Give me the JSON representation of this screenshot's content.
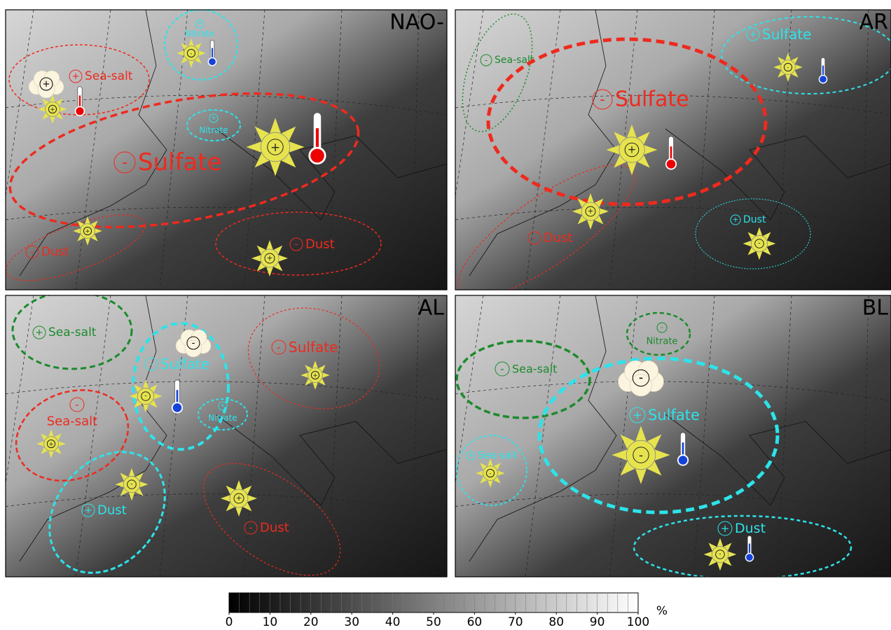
{
  "panels": [
    {
      "label": "NAO-",
      "regions": [
        {
          "name": "Sea-salt",
          "sign": "+"
        },
        {
          "name": "Nitrate",
          "sign": "+"
        },
        {
          "name": "Nitrate",
          "sign": "+"
        },
        {
          "name": "Sulfate",
          "sign": "-"
        },
        {
          "name": "Dust",
          "sign": "-"
        },
        {
          "name": "Dust",
          "sign": "-"
        }
      ],
      "icons": [
        {
          "sign": "+"
        },
        {
          "sign": "+"
        },
        {
          "sign": "-"
        },
        {
          "sign": "+"
        },
        {
          "sign": "+"
        },
        {
          "sign": "+"
        }
      ]
    },
    {
      "label": "AR",
      "regions": [
        {
          "name": "Sea-salt",
          "sign": "-"
        },
        {
          "name": "Sulfate",
          "sign": "+"
        },
        {
          "name": "Sulfate",
          "sign": "-"
        },
        {
          "name": "Dust",
          "sign": "-"
        },
        {
          "name": "Dust",
          "sign": "+"
        }
      ],
      "icons": [
        {
          "sign": "-"
        },
        {
          "sign": "+"
        },
        {
          "sign": "+"
        },
        {
          "sign": "-"
        }
      ]
    },
    {
      "label": "AL",
      "regions": [
        {
          "name": "Sea-salt",
          "sign": "+"
        },
        {
          "name": "Sulfate",
          "sign": "-"
        },
        {
          "name": "Sulfate",
          "sign": "-"
        },
        {
          "name": "Nitrate",
          "sign": "+"
        },
        {
          "name": "Sea-salt",
          "sign": "-"
        },
        {
          "name": "Dust",
          "sign": "+"
        },
        {
          "name": "Dust",
          "sign": "-"
        }
      ],
      "icons": [
        {
          "sign": "+"
        },
        {
          "sign": "-"
        },
        {
          "sign": "-"
        },
        {
          "sign": "+"
        },
        {
          "sign": "-"
        },
        {
          "sign": "+"
        }
      ]
    },
    {
      "label": "BL",
      "regions": [
        {
          "name": "Nitrate",
          "sign": "-"
        },
        {
          "name": "Sea-salt",
          "sign": "-"
        },
        {
          "name": "Sulfate",
          "sign": "+"
        },
        {
          "name": "Sea-salt",
          "sign": "+"
        },
        {
          "name": "Dust",
          "sign": "+"
        }
      ],
      "icons": [
        {
          "sign": "-"
        },
        {
          "sign": "-"
        },
        {
          "sign": "-"
        },
        {
          "sign": "-"
        }
      ]
    }
  ],
  "colorbar": {
    "ticks": [
      0,
      10,
      20,
      30,
      40,
      50,
      60,
      70,
      80,
      90,
      100
    ],
    "unit": "%"
  }
}
